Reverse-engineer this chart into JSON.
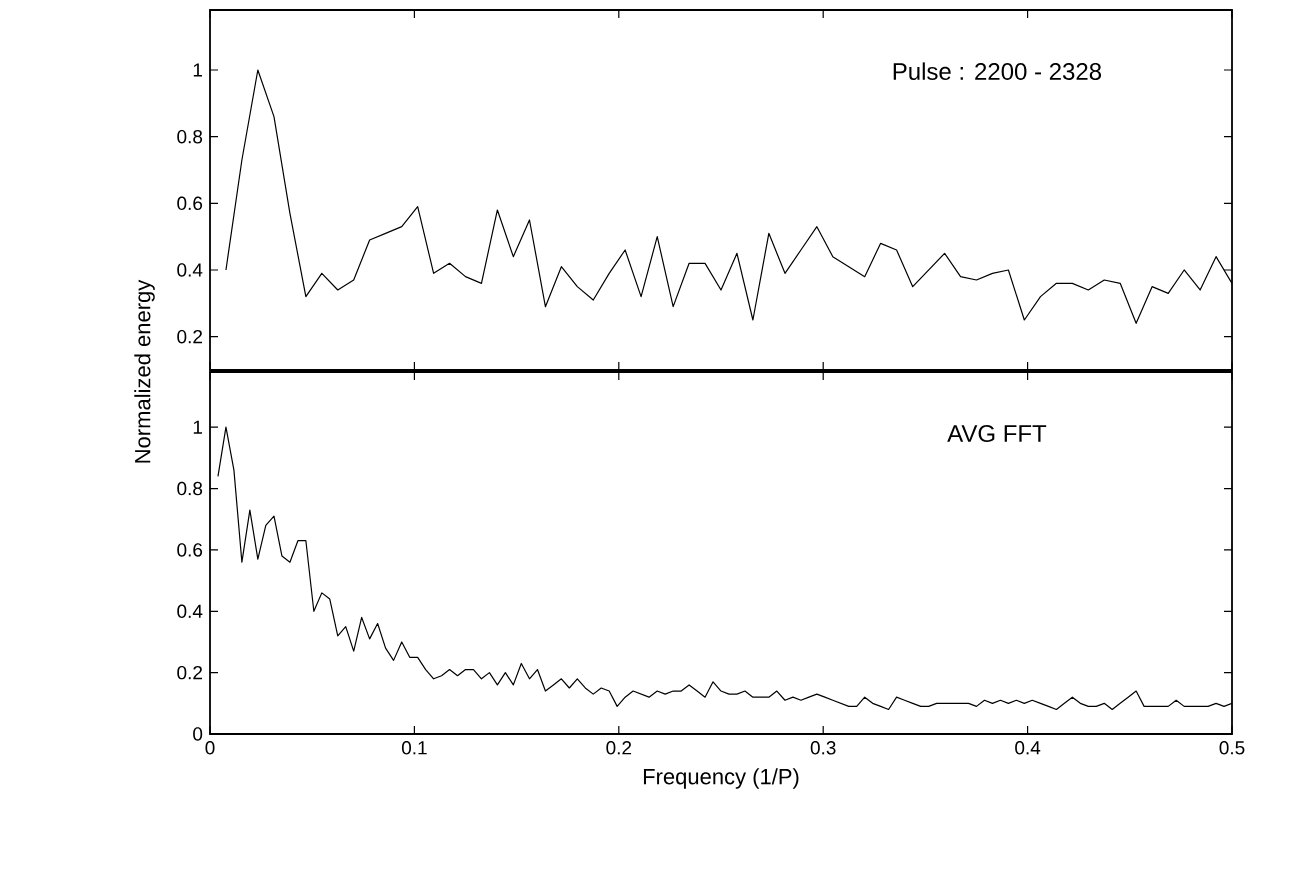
{
  "chart_data": [
    {
      "type": "line",
      "xlim": [
        0,
        0.5
      ],
      "xticks": [
        0,
        0.1,
        0.2,
        0.3,
        0.4,
        0.5
      ],
      "ylim": [
        0.1,
        1.18
      ],
      "yticks": [
        0.2,
        0.4,
        0.6,
        0.8,
        1
      ],
      "tick_labels": "y",
      "annotations": [
        "Pulse : 2200 - 2328"
      ],
      "series": [
        {
          "color": "#000000",
          "x": [
            0.0078,
            0.0156,
            0.0234,
            0.0313,
            0.0391,
            0.0469,
            0.0547,
            0.0625,
            0.0703,
            0.0781,
            0.0859,
            0.0938,
            0.1016,
            0.1094,
            0.1172,
            0.125,
            0.1328,
            0.1406,
            0.1484,
            0.1563,
            0.1641,
            0.1719,
            0.1797,
            0.1875,
            0.1953,
            0.2031,
            0.2109,
            0.2188,
            0.2266,
            0.2344,
            0.2422,
            0.25,
            0.2578,
            0.2656,
            0.2734,
            0.2813,
            0.2891,
            0.2969,
            0.3047,
            0.3125,
            0.3203,
            0.3281,
            0.3359,
            0.3438,
            0.3516,
            0.3594,
            0.3672,
            0.375,
            0.3828,
            0.3906,
            0.3984,
            0.4063,
            0.4141,
            0.4219,
            0.4297,
            0.4375,
            0.4453,
            0.4531,
            0.4609,
            0.4688,
            0.4766,
            0.4844,
            0.4922,
            0.5
          ],
          "values": [
            0.4,
            0.73,
            1.0,
            0.86,
            0.57,
            0.32,
            0.39,
            0.34,
            0.37,
            0.49,
            0.51,
            0.53,
            0.59,
            0.39,
            0.42,
            0.38,
            0.36,
            0.58,
            0.44,
            0.55,
            0.29,
            0.41,
            0.35,
            0.31,
            0.39,
            0.46,
            0.32,
            0.5,
            0.29,
            0.42,
            0.42,
            0.34,
            0.45,
            0.25,
            0.51,
            0.39,
            0.46,
            0.53,
            0.44,
            0.41,
            0.38,
            0.48,
            0.46,
            0.35,
            0.4,
            0.45,
            0.38,
            0.37,
            0.39,
            0.4,
            0.25,
            0.32,
            0.36,
            0.36,
            0.34,
            0.37,
            0.36,
            0.24,
            0.35,
            0.33,
            0.4,
            0.34,
            0.44,
            0.36
          ]
        }
      ]
    },
    {
      "type": "line",
      "xlim": [
        0,
        0.5
      ],
      "xticks": [
        0,
        0.1,
        0.2,
        0.3,
        0.4,
        0.5
      ],
      "ylim": [
        0,
        1.18
      ],
      "yticks": [
        0,
        0.2,
        0.4,
        0.6,
        0.8,
        1
      ],
      "xlabel": "Frequency (1/P)",
      "ylabel": "Normalized energy",
      "annotations": [
        "AVG FFT"
      ],
      "series": [
        {
          "color": "#000000",
          "x": [
            0.0039,
            0.0078,
            0.0117,
            0.0156,
            0.0195,
            0.0234,
            0.0273,
            0.0313,
            0.0352,
            0.0391,
            0.043,
            0.0469,
            0.0508,
            0.0547,
            0.0586,
            0.0625,
            0.0664,
            0.0703,
            0.0742,
            0.0781,
            0.082,
            0.0859,
            0.0898,
            0.0938,
            0.0977,
            0.1016,
            0.1055,
            0.1094,
            0.1133,
            0.1172,
            0.1211,
            0.125,
            0.1289,
            0.1328,
            0.1367,
            0.1406,
            0.1445,
            0.1484,
            0.1523,
            0.1563,
            0.1602,
            0.1641,
            0.168,
            0.1719,
            0.1758,
            0.1797,
            0.1836,
            0.1875,
            0.1914,
            0.1953,
            0.1992,
            0.2031,
            0.207,
            0.2109,
            0.2148,
            0.2188,
            0.2227,
            0.2266,
            0.2305,
            0.2344,
            0.2383,
            0.2422,
            0.2461,
            0.25,
            0.2539,
            0.2578,
            0.2617,
            0.2656,
            0.2695,
            0.2734,
            0.2773,
            0.2813,
            0.2852,
            0.2891,
            0.293,
            0.2969,
            0.3008,
            0.3047,
            0.3086,
            0.3125,
            0.3164,
            0.3203,
            0.3242,
            0.3281,
            0.332,
            0.3359,
            0.3398,
            0.3438,
            0.3477,
            0.3516,
            0.3555,
            0.3594,
            0.3633,
            0.3672,
            0.3711,
            0.375,
            0.3789,
            0.3828,
            0.3867,
            0.3906,
            0.3945,
            0.3984,
            0.4023,
            0.4063,
            0.4102,
            0.4141,
            0.418,
            0.4219,
            0.4258,
            0.4297,
            0.4336,
            0.4375,
            0.4414,
            0.4453,
            0.4492,
            0.4531,
            0.457,
            0.4609,
            0.4648,
            0.4688,
            0.4727,
            0.4766,
            0.4805,
            0.4844,
            0.4883,
            0.4922,
            0.4961,
            0.5
          ],
          "values": [
            0.84,
            1.0,
            0.86,
            0.56,
            0.73,
            0.57,
            0.68,
            0.71,
            0.58,
            0.56,
            0.63,
            0.63,
            0.4,
            0.46,
            0.44,
            0.32,
            0.35,
            0.27,
            0.38,
            0.31,
            0.36,
            0.28,
            0.24,
            0.3,
            0.25,
            0.25,
            0.21,
            0.18,
            0.19,
            0.21,
            0.19,
            0.21,
            0.21,
            0.18,
            0.2,
            0.16,
            0.2,
            0.16,
            0.23,
            0.18,
            0.21,
            0.14,
            0.16,
            0.18,
            0.15,
            0.18,
            0.15,
            0.13,
            0.15,
            0.14,
            0.09,
            0.12,
            0.14,
            0.13,
            0.12,
            0.14,
            0.13,
            0.14,
            0.14,
            0.16,
            0.14,
            0.12,
            0.17,
            0.14,
            0.13,
            0.13,
            0.14,
            0.12,
            0.12,
            0.12,
            0.14,
            0.11,
            0.12,
            0.11,
            0.12,
            0.13,
            0.12,
            0.11,
            0.1,
            0.09,
            0.09,
            0.12,
            0.1,
            0.09,
            0.08,
            0.12,
            0.11,
            0.1,
            0.09,
            0.09,
            0.1,
            0.1,
            0.1,
            0.1,
            0.1,
            0.09,
            0.11,
            0.1,
            0.11,
            0.1,
            0.11,
            0.1,
            0.11,
            0.1,
            0.09,
            0.08,
            0.1,
            0.12,
            0.1,
            0.09,
            0.09,
            0.1,
            0.08,
            0.1,
            0.12,
            0.14,
            0.09,
            0.09,
            0.09,
            0.09,
            0.11,
            0.09,
            0.09,
            0.09,
            0.09,
            0.1,
            0.09,
            0.1
          ]
        }
      ]
    }
  ]
}
